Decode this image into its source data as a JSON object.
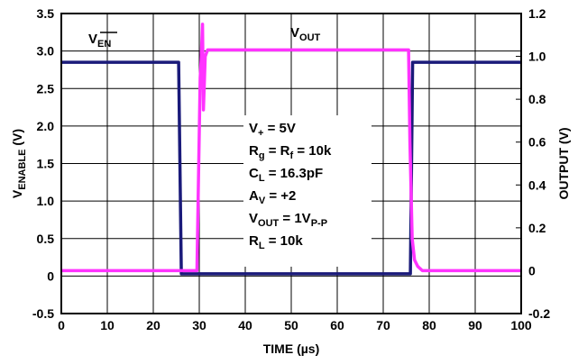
{
  "chart_data": {
    "type": "line",
    "x_axis": {
      "label": "TIME (µs)",
      "range": [
        0,
        100
      ],
      "ticks": [
        "0",
        "10",
        "20",
        "30",
        "40",
        "50",
        "60",
        "70",
        "80",
        "90",
        "100"
      ]
    },
    "y_axis_left": {
      "label": {
        "main": "V",
        "sub": "ENABLE",
        "rest": " (V)"
      },
      "range": [
        -0.5,
        3.5
      ],
      "ticks": [
        "-0.5",
        "0",
        "0.5",
        "1.0",
        "1.5",
        "2.0",
        "2.5",
        "3.0",
        "3.5"
      ]
    },
    "y_axis_right": {
      "label": "OUTPUT (V)",
      "range": [
        -0.2,
        1.2
      ],
      "ticks": [
        "-0.2",
        "0",
        "0.2",
        "0.4",
        "0.6",
        "0.8",
        "1.0",
        "1.2"
      ]
    },
    "grid": true,
    "series": [
      {
        "name": {
          "main": "V",
          "sub": "EN"
        },
        "axis": "left",
        "color": "#1a1a7a",
        "points": [
          [
            0,
            2.85
          ],
          [
            25.5,
            2.85
          ],
          [
            26.1,
            0.03
          ],
          [
            75.9,
            0.03
          ],
          [
            76.4,
            2.85
          ],
          [
            100,
            2.85
          ]
        ]
      },
      {
        "name": {
          "main": "V",
          "sub": "OUT"
        },
        "axis": "right",
        "color": "#ff33ff",
        "points": [
          [
            0,
            0.0
          ],
          [
            29.5,
            0.0
          ],
          [
            30.2,
            0.9
          ],
          [
            30.4,
            0.98
          ],
          [
            30.7,
            1.15
          ],
          [
            30.9,
            0.75
          ],
          [
            31.3,
            1.0
          ],
          [
            31.8,
            1.03
          ],
          [
            75.5,
            1.03
          ],
          [
            75.8,
            0.6
          ],
          [
            76.3,
            0.15
          ],
          [
            76.8,
            0.05
          ],
          [
            77.5,
            0.02
          ],
          [
            78.5,
            0.0
          ],
          [
            100,
            0.0
          ]
        ]
      }
    ],
    "annotation": [
      [
        {
          "t": "V"
        },
        {
          "t": "+",
          "s": true
        },
        {
          "t": " = 5V"
        }
      ],
      [
        {
          "t": "R"
        },
        {
          "t": "g",
          "s": true
        },
        {
          "t": " = R"
        },
        {
          "t": "f",
          "s": true
        },
        {
          "t": " = 10k"
        }
      ],
      [
        {
          "t": "C"
        },
        {
          "t": "L",
          "s": true
        },
        {
          "t": " = 16.3pF"
        }
      ],
      [
        {
          "t": "A"
        },
        {
          "t": "V",
          "s": true
        },
        {
          "t": " = +2"
        }
      ],
      [
        {
          "t": "V"
        },
        {
          "t": "OUT",
          "s": true
        },
        {
          "t": " = 1V"
        },
        {
          "t": "P-P",
          "s": true
        }
      ],
      [
        {
          "t": "R"
        },
        {
          "t": "L",
          "s": true
        },
        {
          "t": " = 10k"
        }
      ]
    ]
  }
}
